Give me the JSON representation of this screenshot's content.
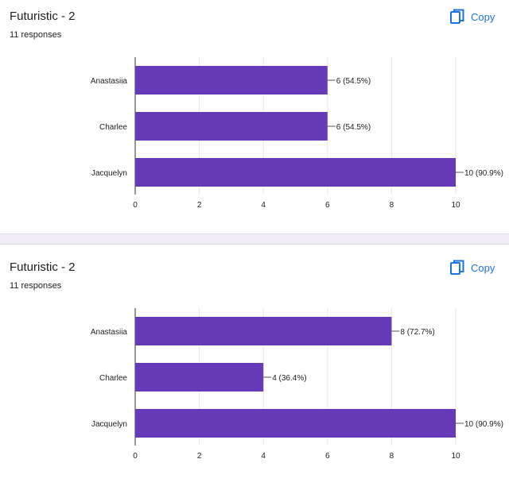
{
  "copy_label": "Copy",
  "icons": {
    "copy": "copy-icon"
  },
  "colors": {
    "bar": "#673ab7",
    "accent": "#1a73e8",
    "grid": "#e6e6e6",
    "separator": "#f0ebf8"
  },
  "cards": [
    {
      "title": "Futuristic - 2",
      "responses": "11 responses"
    },
    {
      "title": "Futuristic - 2",
      "responses": "11 responses"
    }
  ],
  "chart_data": [
    {
      "type": "bar",
      "orientation": "horizontal",
      "categories": [
        "Anastasiia",
        "Charlee",
        "Jacquelyn"
      ],
      "values": [
        6,
        6,
        10
      ],
      "labels": [
        "6 (54.5%)",
        "6 (54.5%)",
        "10 (90.9%)"
      ],
      "xlim": [
        0,
        10
      ],
      "xticks": [
        0,
        2,
        4,
        6,
        8,
        10
      ],
      "grid": true
    },
    {
      "type": "bar",
      "orientation": "horizontal",
      "categories": [
        "Anastasiia",
        "Charlee",
        "Jacquelyn"
      ],
      "values": [
        8,
        4,
        10
      ],
      "labels": [
        "8 (72.7%)",
        "4 (36.4%)",
        "10 (90.9%)"
      ],
      "xlim": [
        0,
        10
      ],
      "xticks": [
        0,
        2,
        4,
        6,
        8,
        10
      ],
      "grid": true
    }
  ]
}
